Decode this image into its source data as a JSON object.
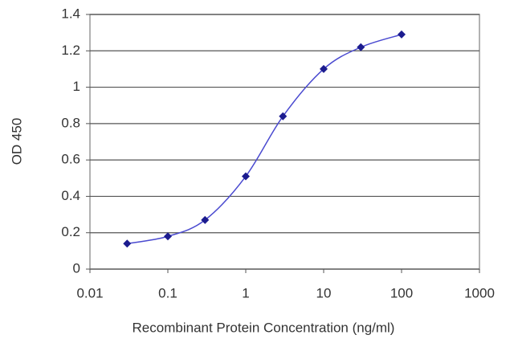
{
  "chart_data": {
    "type": "line",
    "x_label": "Recombinant Protein Concentration (ng/ml)",
    "y_label": "OD 450",
    "x": [
      0.03,
      0.1,
      0.3,
      1,
      3,
      10,
      30,
      100
    ],
    "series": [
      {
        "color": "#1c1c8f",
        "values": [
          0.14,
          0.18,
          0.27,
          0.51,
          0.84,
          1.1,
          1.22,
          1.29
        ]
      }
    ],
    "xscale": "log",
    "xlim": [
      0.01,
      1000
    ],
    "xticks": [
      0.01,
      0.1,
      1,
      10,
      100,
      1000
    ],
    "ylim": [
      0,
      1.4
    ],
    "yticks": [
      0,
      0.2,
      0.4,
      0.6,
      0.8,
      1,
      1.2,
      1.4
    ],
    "grid": true
  }
}
